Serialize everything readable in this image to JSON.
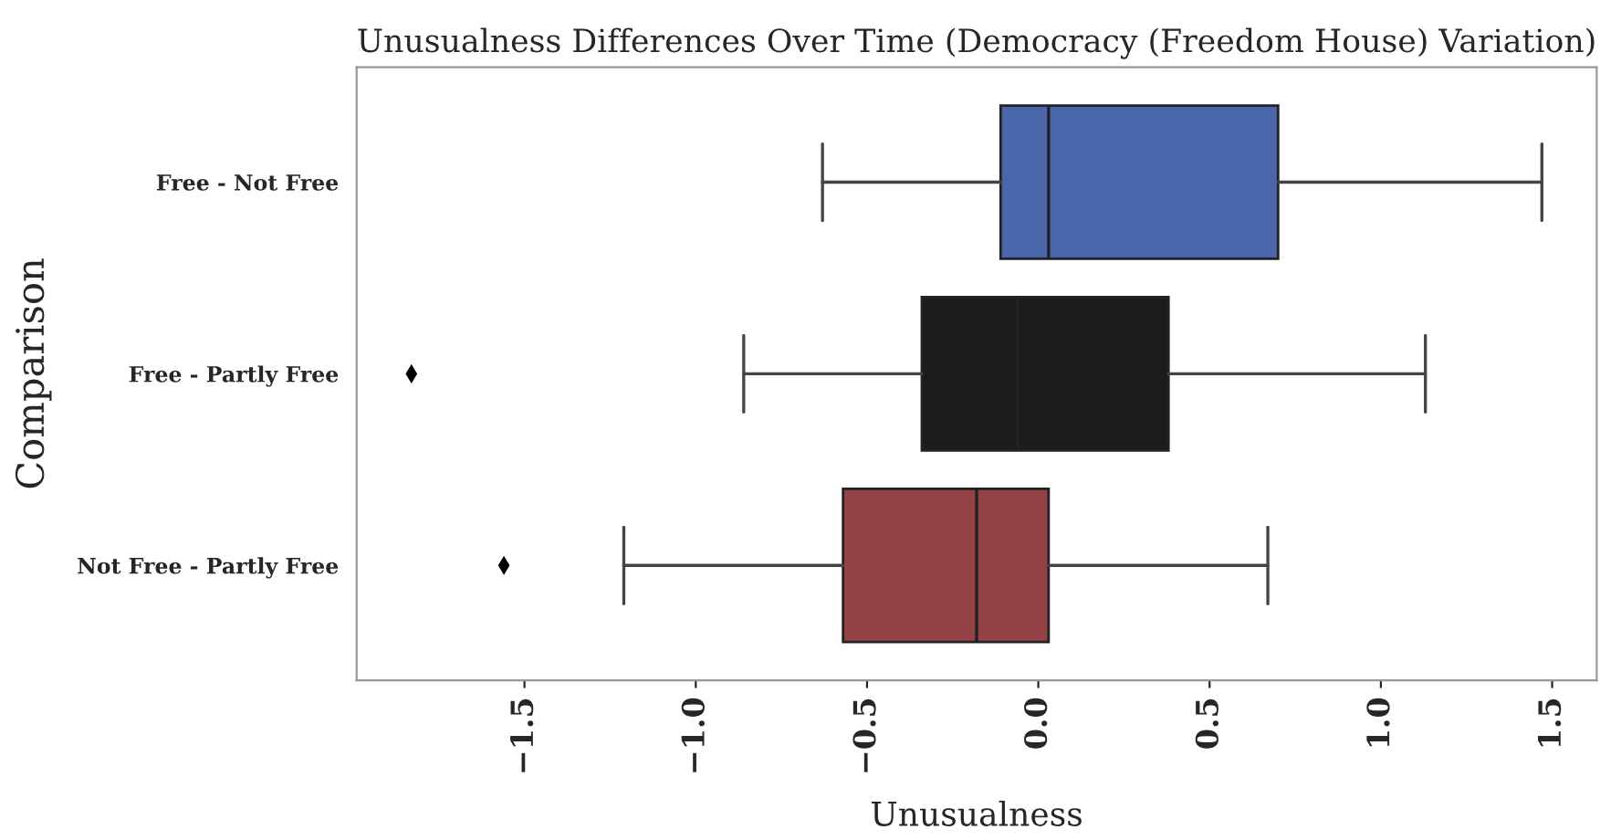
{
  "chart_data": {
    "type": "box",
    "orientation": "horizontal",
    "title": "Unusualness Differences Over Time (Democracy (Freedom House) Variation)",
    "xlabel": "Unusualness",
    "ylabel": "Comparison",
    "categories": [
      "Free - Not Free",
      "Free - Partly Free",
      "Not Free - Partly Free"
    ],
    "colors": [
      "#4866a9",
      "#1c1c1c",
      "#944245"
    ],
    "boxes": [
      {
        "low": -0.63,
        "q1": -0.11,
        "median": 0.03,
        "q3": 0.7,
        "high": 1.47
      },
      {
        "low": -0.86,
        "q1": -0.34,
        "median": -0.06,
        "q3": 0.38,
        "high": 1.13,
        "outliers": [
          -1.83
        ]
      },
      {
        "low": -1.21,
        "q1": -0.57,
        "median": -0.18,
        "q3": 0.03,
        "high": 0.67,
        "outliers": [
          -1.56
        ]
      }
    ],
    "xlim": [
      -1.99,
      1.63
    ],
    "xticks": [
      {
        "value": -1.5,
        "label": "−1.5"
      },
      {
        "value": -1.0,
        "label": "−1.0"
      },
      {
        "value": -0.5,
        "label": "−0.5"
      },
      {
        "value": 0.0,
        "label": "0.0"
      },
      {
        "value": 0.5,
        "label": "0.5"
      },
      {
        "value": 1.0,
        "label": "1.0"
      },
      {
        "value": 1.5,
        "label": "1.5"
      }
    ],
    "grid": false
  }
}
